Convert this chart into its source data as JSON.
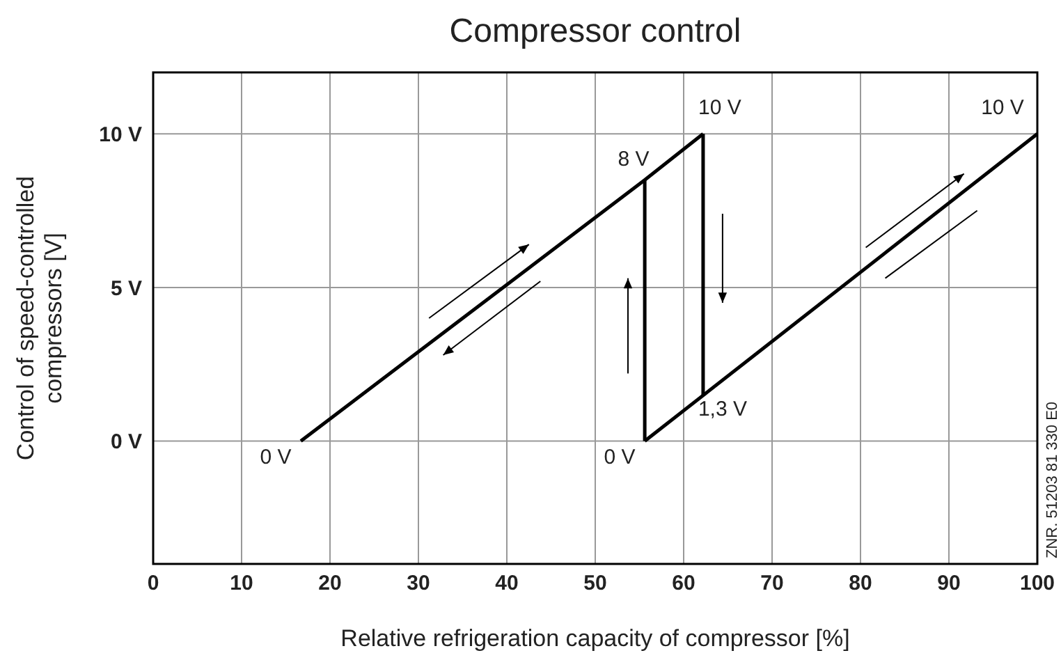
{
  "chart_data": {
    "type": "line",
    "title": "Compressor control",
    "xlabel": "Relative refrigeration capacity of compressor [%]",
    "ylabel": "Control of speed-controlled compressors [V]",
    "series": [
      {
        "color": "#000000",
        "x": [
          16.7,
          55.6,
          62.2
        ],
        "values": [
          0,
          8.5,
          10
        ]
      },
      {
        "color": "#000000",
        "x": [
          55.6,
          55.6
        ],
        "values": [
          0,
          8.5
        ]
      },
      {
        "color": "#000000",
        "x": [
          62.2,
          62.2
        ],
        "values": [
          10,
          1.5
        ]
      },
      {
        "color": "#000000",
        "x": [
          55.6,
          100
        ],
        "values": [
          0,
          10
        ]
      }
    ],
    "xlim": [
      0,
      100
    ],
    "xticks": [
      0,
      10,
      20,
      30,
      40,
      50,
      60,
      70,
      80,
      90,
      100
    ],
    "ylim": [
      -4,
      12
    ],
    "yticks": [
      {
        "value": 0,
        "label": "0 V"
      },
      {
        "value": 5,
        "label": "5 V"
      },
      {
        "value": 10,
        "label": "10 V"
      }
    ],
    "grid": true,
    "marker": "none",
    "line_style": "solid",
    "annotations": [
      {
        "text": "0 V",
        "x": 16.7,
        "y": 0
      },
      {
        "text": "8 V",
        "x": 55.6,
        "y": 8.5
      },
      {
        "text": "10 V",
        "x": 62.2,
        "y": 10
      },
      {
        "text": "0 V",
        "x": 55.6,
        "y": 0
      },
      {
        "text": "1,3 V",
        "x": 62.2,
        "y": 1.5
      },
      {
        "text": "10 V",
        "x": 100,
        "y": 10
      },
      "ZNR. 51203 81 330 E0"
    ]
  }
}
